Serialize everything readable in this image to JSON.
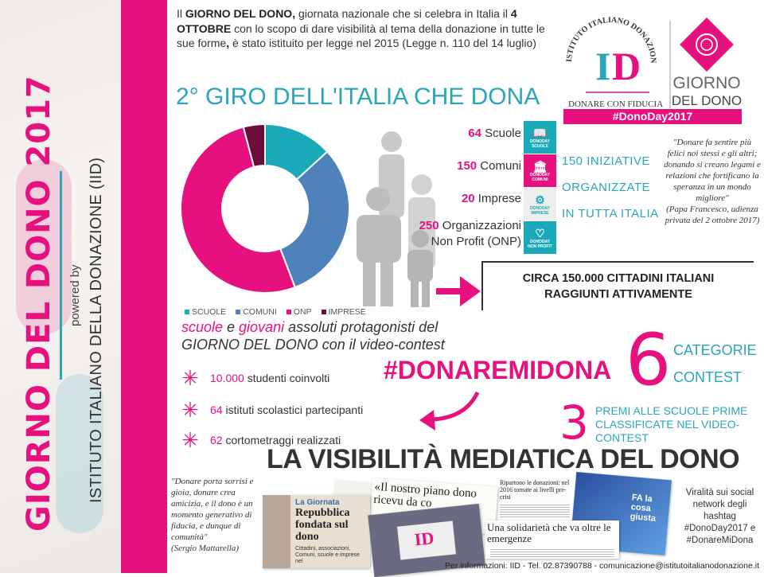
{
  "colors": {
    "pink": "#e6117f",
    "teal": "#2aa6b8",
    "blue": "#4f81bd",
    "dark_red": "#6b0f3a",
    "gray": "#c8c8c8"
  },
  "sidebar": {
    "title": "GIORNO DEL DONO 2017",
    "powered_by": "powered by",
    "institute": "ISTITUTO ITALIANO DELLA DONAZIONE (IID)"
  },
  "intro": {
    "t1": "Il ",
    "b1": "GIORNO DEL DONO,",
    "t2": " giornata nazionale che si celebra in Italia il ",
    "b2": "4 OTTOBRE",
    "t3": " con lo scopo di dare visibilità al tema della donazione in tutte le sue forme",
    "b3": ",",
    "t4": " è stato istituito per legge nel 2015 (Legge n. 110 del 14 luglio)"
  },
  "logo": {
    "arc_text": "ISTITUTO ITALIANO DONAZIONE",
    "mark": "ID",
    "tagline": "DONARE CON FIDUCIA",
    "giorno": "GIORNO",
    "del_dono": "DEL DONO",
    "hashtag": "#DonoDay2017"
  },
  "giro_title": "2° GIRO DELL'ITALIA CHE DONA",
  "chart_data": {
    "type": "pie",
    "donut": true,
    "categories": [
      "SCUOLE",
      "COMUNI",
      "ONP",
      "IMPRESE"
    ],
    "values": [
      64,
      150,
      250,
      20
    ],
    "colors": [
      "#1aa9b8",
      "#4f81bd",
      "#e6117f",
      "#6b0f3a"
    ],
    "legend": "bottom"
  },
  "counts": [
    {
      "num": "64",
      "label": " Scuole",
      "icon": "book-icon",
      "icon_caption": "SCUOLE",
      "color": "#1aa9b8"
    },
    {
      "num": "150",
      "label": " Comuni",
      "icon": "town-hall-icon",
      "icon_caption": "COMUNI",
      "color": "#e6117f"
    },
    {
      "num": "20",
      "label": " Imprese",
      "icon": "gears-icon",
      "icon_caption": "IMPRESE",
      "color": "#eeeeee"
    },
    {
      "num": "250",
      "label": " Organizzazioni",
      "label2": "Non Profit (ONP)",
      "icon": "heart-icon",
      "icon_caption": "NON PROFIT",
      "color": "#1aa9b8"
    }
  ],
  "icon_brand": "DONODAY",
  "iniziative": [
    "150 INIZIATIVE",
    "ORGANIZZATE",
    "IN TUTTA ITALIA"
  ],
  "papa_quote": "\"Donare fa sentire più felici noi stessi e gli altri; donando si creano legami e relazioni che fortificano la speranza in un mondo migliore\"",
  "papa_source": "(Papa Francesco, udienza privata del 2 ottobre 2017)",
  "circa": [
    "CIRCA 150.000 CITTADINI ITALIANI",
    "RAGGIUNTI ATTIVAMENTE"
  ],
  "protagonisti": {
    "w1": "scuole",
    "w2": " e ",
    "w3": "giovani",
    "w4": " assoluti protagonisti del",
    "line2": "GIORNO DEL DONO con il video-contest"
  },
  "bullets": [
    {
      "num": "10.000",
      "text": " studenti coinvolti"
    },
    {
      "num": "64",
      "text": " istituti scolastici partecipanti"
    },
    {
      "num": "62",
      "text": " cortometraggi realizzati"
    }
  ],
  "hashtag": "#DONAREMIDONA",
  "categorie": {
    "num": "6",
    "l1": "CATEGORIE",
    "l2": "CONTEST"
  },
  "premi": {
    "num": "3",
    "l1": "PREMI ALLE SCUOLE PRIME",
    "l2": "CLASSIFICATE NEL VIDEO-CONTEST"
  },
  "visibilita_title": "LA VISIBILITÀ MEDIATICA DEL DONO",
  "mattarella_quote": "\"Donare porta sorrisi e gioia, donare crea amicizia, e il dono è un momento generativo di fiducia, e dunque di comunità\"",
  "mattarella_source": "(Sergio Mattarella)",
  "press": {
    "p1_kicker": "La Giornata",
    "p1_head": "Repubblica fondata sul dono",
    "p1_body": "Cittadini, associazioni, Comuni, scuole e imprese nel",
    "p2_head": "«Il nostro piano dono ricevu da co",
    "p3_head": "Ripartono le donazioni: nel 2016 tornate ai livelli pre-crisi",
    "p4_head": "Una solidarietà che va oltre le emergenze",
    "p5_head": "FA la cosa giusta"
  },
  "viralita": [
    "Viralità sui social",
    "network degli",
    "hashtag",
    "#DonoDay2017 e",
    "#DonareMiDona"
  ],
  "footer": "Per informazioni: IID - Tel. 02.87390788 - comunicazione@istitutoitalianodonazione.it"
}
